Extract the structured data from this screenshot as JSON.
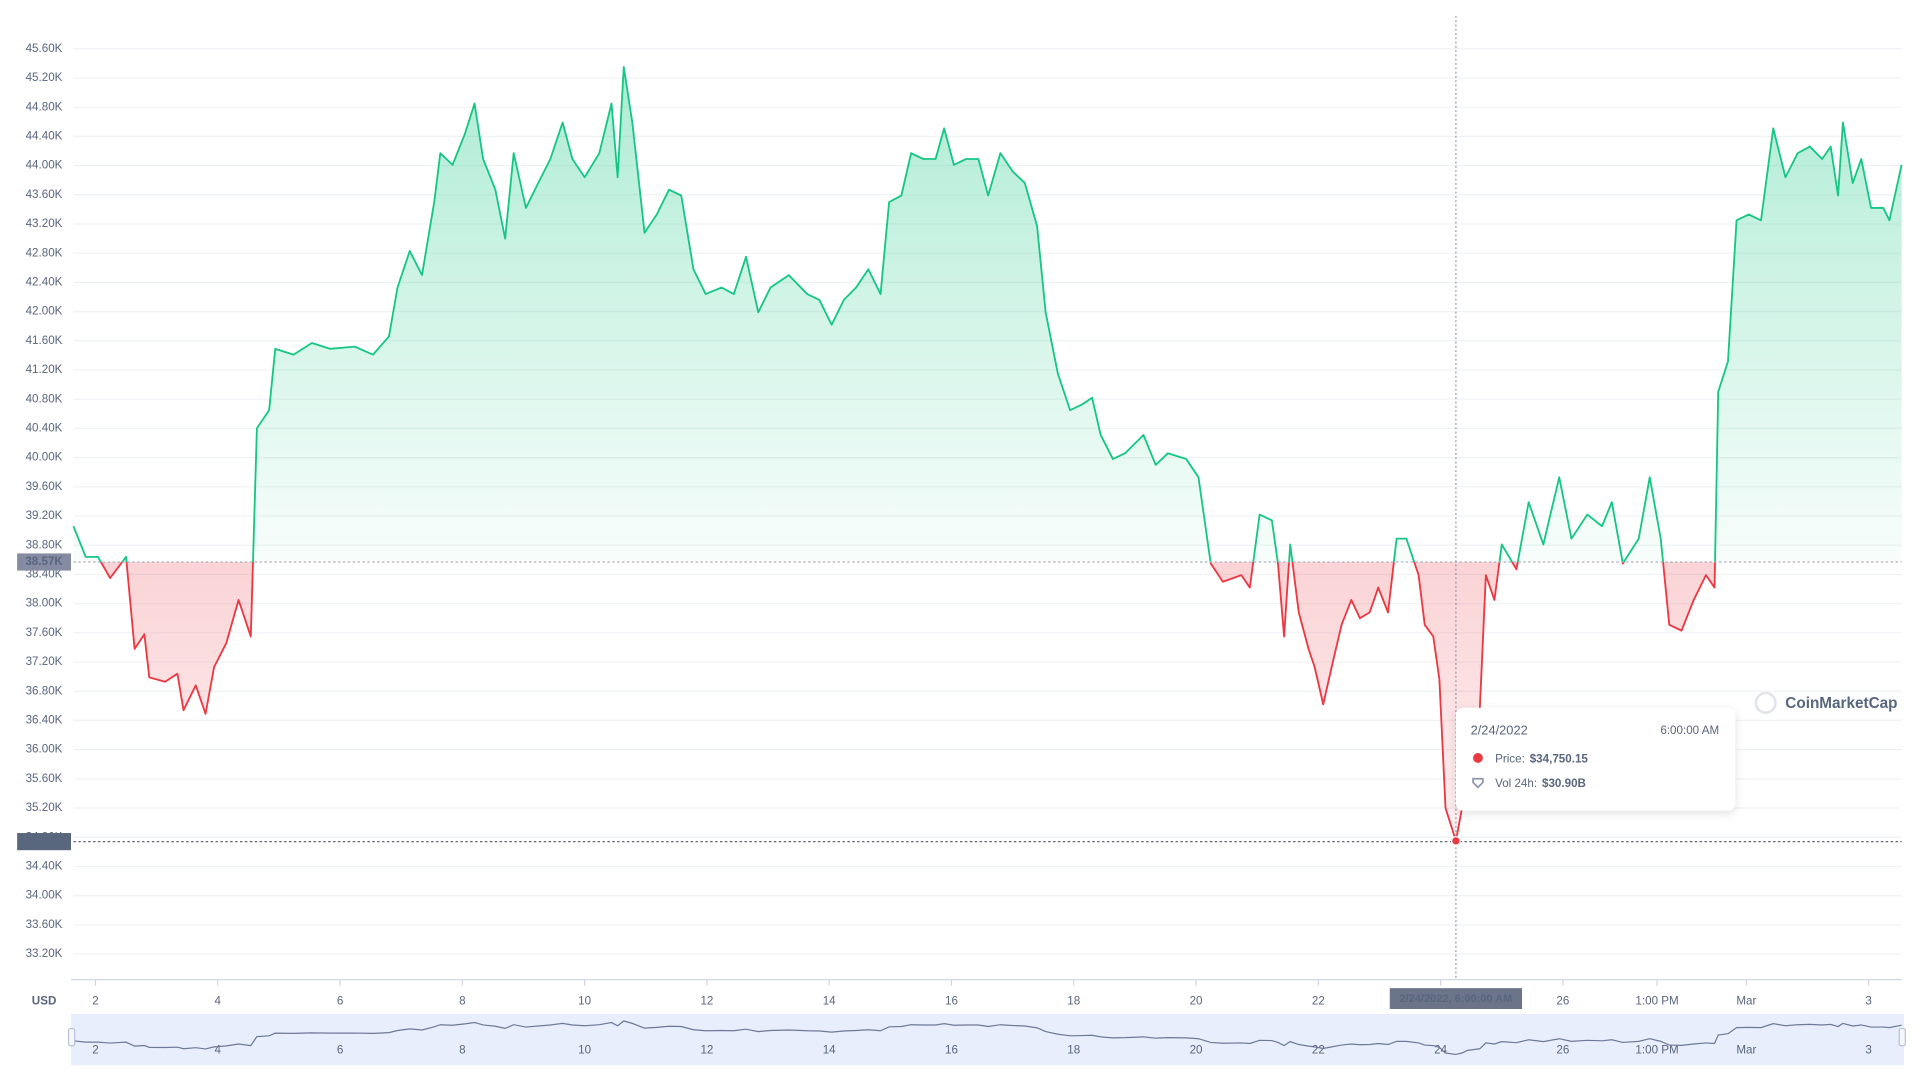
{
  "chart_data": {
    "type": "line",
    "axis_unit": "USD",
    "x": [
      1.64,
      1.84,
      2.04,
      2.24,
      2.5,
      2.64,
      2.8,
      2.88,
      3.14,
      3.34,
      3.44,
      3.64,
      3.8,
      3.94,
      4.14,
      4.34,
      4.54,
      4.64,
      4.84,
      4.94,
      5.24,
      5.54,
      5.84,
      6.24,
      6.54,
      6.8,
      6.94,
      7.14,
      7.34,
      7.54,
      7.64,
      7.84,
      8.04,
      8.2,
      8.34,
      8.54,
      8.7,
      8.84,
      9.04,
      9.24,
      9.44,
      9.64,
      9.8,
      10.0,
      10.24,
      10.44,
      10.54,
      10.64,
      10.78,
      10.98,
      11.18,
      11.38,
      11.58,
      11.78,
      11.98,
      12.24,
      12.44,
      12.64,
      12.84,
      13.04,
      13.34,
      13.64,
      13.84,
      14.04,
      14.24,
      14.44,
      14.64,
      14.84,
      14.98,
      15.18,
      15.34,
      15.54,
      15.74,
      15.88,
      16.04,
      16.24,
      16.44,
      16.6,
      16.8,
      17.0,
      17.2,
      17.4,
      17.54,
      17.74,
      17.94,
      18.14,
      18.3,
      18.44,
      18.64,
      18.84,
      19.14,
      19.34,
      19.54,
      19.84,
      20.04,
      20.24,
      20.44,
      20.74,
      20.88,
      21.04,
      21.24,
      21.34,
      21.44,
      21.54,
      21.68,
      21.84,
      21.94,
      22.08,
      22.24,
      22.38,
      22.54,
      22.68,
      22.84,
      22.98,
      23.14,
      23.28,
      23.44,
      23.64,
      23.74,
      23.88,
      23.98,
      24.08,
      24.25,
      24.35,
      24.44,
      24.64,
      24.74,
      24.88,
      25.0,
      25.24,
      25.44,
      25.68,
      25.94,
      26.14,
      26.4,
      26.64,
      26.8,
      26.98,
      27.24,
      27.42,
      27.6,
      27.74,
      27.94,
      28.14,
      28.34,
      28.48,
      28.54,
      28.7,
      28.84,
      29.04,
      29.24,
      29.44,
      29.64,
      29.84,
      30.04,
      30.24,
      30.38,
      30.5,
      30.58,
      30.74,
      30.88,
      31.04,
      31.24,
      31.34,
      31.54
    ],
    "values": [
      39060,
      38640,
      38640,
      38350,
      38640,
      37380,
      37580,
      36990,
      36930,
      37040,
      36540,
      36880,
      36490,
      37130,
      37460,
      38050,
      37550,
      40400,
      40650,
      41490,
      41410,
      41570,
      41490,
      41520,
      41410,
      41660,
      42330,
      42830,
      42500,
      43500,
      44170,
      44010,
      44430,
      44850,
      44090,
      43670,
      43000,
      44170,
      43420,
      43760,
      44090,
      44590,
      44090,
      43840,
      44170,
      44850,
      43840,
      45350,
      44590,
      43080,
      43330,
      43670,
      43590,
      42580,
      42240,
      42330,
      42240,
      42750,
      41990,
      42330,
      42500,
      42240,
      42160,
      41820,
      42160,
      42330,
      42580,
      42240,
      43500,
      43590,
      44170,
      44090,
      44090,
      44510,
      44010,
      44090,
      44090,
      43590,
      44170,
      43920,
      43760,
      43170,
      41990,
      41150,
      40650,
      40730,
      40820,
      40310,
      39980,
      40060,
      40310,
      39900,
      40060,
      39980,
      39730,
      38550,
      38300,
      38390,
      38220,
      39220,
      39140,
      38550,
      37550,
      38810,
      37880,
      37380,
      37130,
      36620,
      37210,
      37710,
      38050,
      37800,
      37880,
      38220,
      37880,
      38890,
      38890,
      38390,
      37710,
      37550,
      36960,
      35200,
      34750.15,
      35200,
      36040,
      36540,
      38390,
      38050,
      38810,
      38470,
      39390,
      38810,
      39730,
      38890,
      39220,
      39060,
      39390,
      38550,
      38890,
      39730,
      38890,
      37710,
      37630,
      38050,
      38390,
      38220,
      40900,
      41320,
      43250,
      43330,
      43250,
      44510,
      43840,
      44170,
      44260,
      44090,
      44260,
      43590,
      44590,
      43760,
      44090,
      43420,
      43420,
      43250,
      44010
    ],
    "colors": {
      "up": "#16c784",
      "down": "#ea3943"
    },
    "xlim": [
      1.64,
      31.54
    ],
    "xticks": [
      2,
      4,
      6,
      8,
      10,
      12,
      14,
      16,
      18,
      20,
      22,
      24,
      26,
      {
        "value": 27.54,
        "label": "1:00 PM"
      },
      {
        "value": 29,
        "label": "Mar"
      },
      {
        "value": 31,
        "label": "3"
      }
    ],
    "ylim": [
      32850,
      46050
    ],
    "yticks": [
      {
        "value": 33200,
        "label": "33.20K"
      },
      {
        "value": 33600,
        "label": "33.60K"
      },
      {
        "value": 34000,
        "label": "34.00K"
      },
      {
        "value": 34400,
        "label": "34.40K"
      },
      {
        "value": 34800,
        "label": "34.80K"
      },
      {
        "value": 35200,
        "label": "35.20K"
      },
      {
        "value": 35600,
        "label": "35.60K"
      },
      {
        "value": 36000,
        "label": "36.00K"
      },
      {
        "value": 36400,
        "label": "36.40K"
      },
      {
        "value": 36800,
        "label": "36.80K"
      },
      {
        "value": 37200,
        "label": "37.20K"
      },
      {
        "value": 37600,
        "label": "37.60K"
      },
      {
        "value": 38000,
        "label": "38.00K"
      },
      {
        "value": 38400,
        "label": "38.40K"
      },
      {
        "value": 38800,
        "label": "38.80K"
      },
      {
        "value": 39200,
        "label": "39.20K"
      },
      {
        "value": 39600,
        "label": "39.60K"
      },
      {
        "value": 40000,
        "label": "40.00K"
      },
      {
        "value": 40400,
        "label": "40.40K"
      },
      {
        "value": 40800,
        "label": "40.80K"
      },
      {
        "value": 41200,
        "label": "41.20K"
      },
      {
        "value": 41600,
        "label": "41.60K"
      },
      {
        "value": 42000,
        "label": "42.00K"
      },
      {
        "value": 42400,
        "label": "42.40K"
      },
      {
        "value": 42800,
        "label": "42.80K"
      },
      {
        "value": 43200,
        "label": "43.20K"
      },
      {
        "value": 43600,
        "label": "43.60K"
      },
      {
        "value": 44000,
        "label": "44.00K"
      },
      {
        "value": 44400,
        "label": "44.40K"
      },
      {
        "value": 44800,
        "label": "44.80K"
      },
      {
        "value": 45200,
        "label": "45.20K"
      },
      {
        "value": 45600,
        "label": "45.60K"
      }
    ],
    "grid": true,
    "baseline": {
      "value": 38570,
      "label": "38.57K"
    },
    "price_marker": {
      "value": 34740,
      "label": "34.74K"
    },
    "crosshair": {
      "x": 24.25,
      "label": "2/24/2022, 6:00:00 AM"
    },
    "tooltip": {
      "date": "2/24/2022",
      "time": "6:00:00 AM",
      "price_label": "Price:",
      "price": {
        "value": 34750.15,
        "label": "$34,750.15"
      },
      "volume_label": "Vol 24h:",
      "volume": {
        "value": 30900000000,
        "label": "$30.90B"
      }
    },
    "watermark": "CoinMarketCap"
  }
}
